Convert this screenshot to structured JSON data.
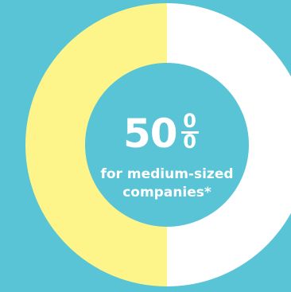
{
  "chart_data": {
    "type": "pie",
    "title": "",
    "slices": [
      {
        "value": 50,
        "color": "#fdf58a"
      },
      {
        "value": 50,
        "color": "#ffffff"
      }
    ],
    "center_value": "50",
    "center_unit": "%",
    "center_unit_top": "0",
    "center_unit_bottom": "0",
    "subtitle_line1": "for medium-sized",
    "subtitle_line2": "companies*"
  },
  "colors": {
    "background": "#58c4d6",
    "accent_yellow": "#fdf58a",
    "white": "#ffffff"
  }
}
